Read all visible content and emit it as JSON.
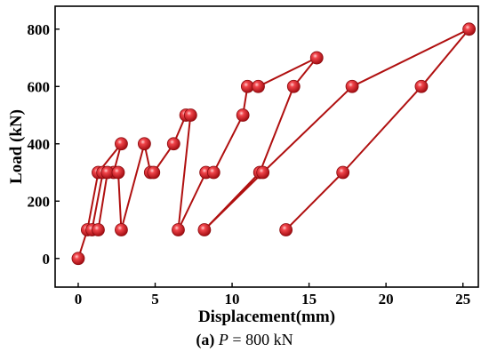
{
  "chart_data": {
    "type": "line",
    "xlabel": "Displacement(mm)",
    "ylabel": "Load (kN)",
    "xlim": [
      -1.5,
      26
    ],
    "ylim": [
      -100,
      880
    ],
    "xticks": [
      0,
      5,
      10,
      15,
      20,
      25
    ],
    "yticks": [
      0,
      200,
      400,
      600,
      800
    ],
    "grid": false,
    "series": [
      {
        "line_color": "#b01010",
        "marker_color": "#e8242b",
        "x": [
          0,
          0.6,
          1.3,
          2.8,
          2.3,
          1.6,
          0.9,
          1.3,
          1.9,
          2.6,
          2.8,
          4.3,
          4.7,
          4.9,
          6.2,
          7.0,
          7.3,
          6.5,
          8.3,
          8.8,
          10.7,
          11.0,
          11.7,
          15.5,
          14.0,
          11.8,
          8.2,
          12.0,
          17.8,
          25.4,
          22.3,
          17.2,
          13.5
        ],
        "y": [
          0,
          100,
          300,
          400,
          300,
          300,
          100,
          100,
          300,
          300,
          100,
          400,
          300,
          300,
          400,
          500,
          500,
          100,
          300,
          300,
          500,
          600,
          600,
          700,
          600,
          300,
          100,
          300,
          600,
          800,
          600,
          300,
          100
        ]
      }
    ]
  },
  "caption": {
    "label": "(a)",
    "variable": "P",
    "rest": " = 800 kN"
  }
}
